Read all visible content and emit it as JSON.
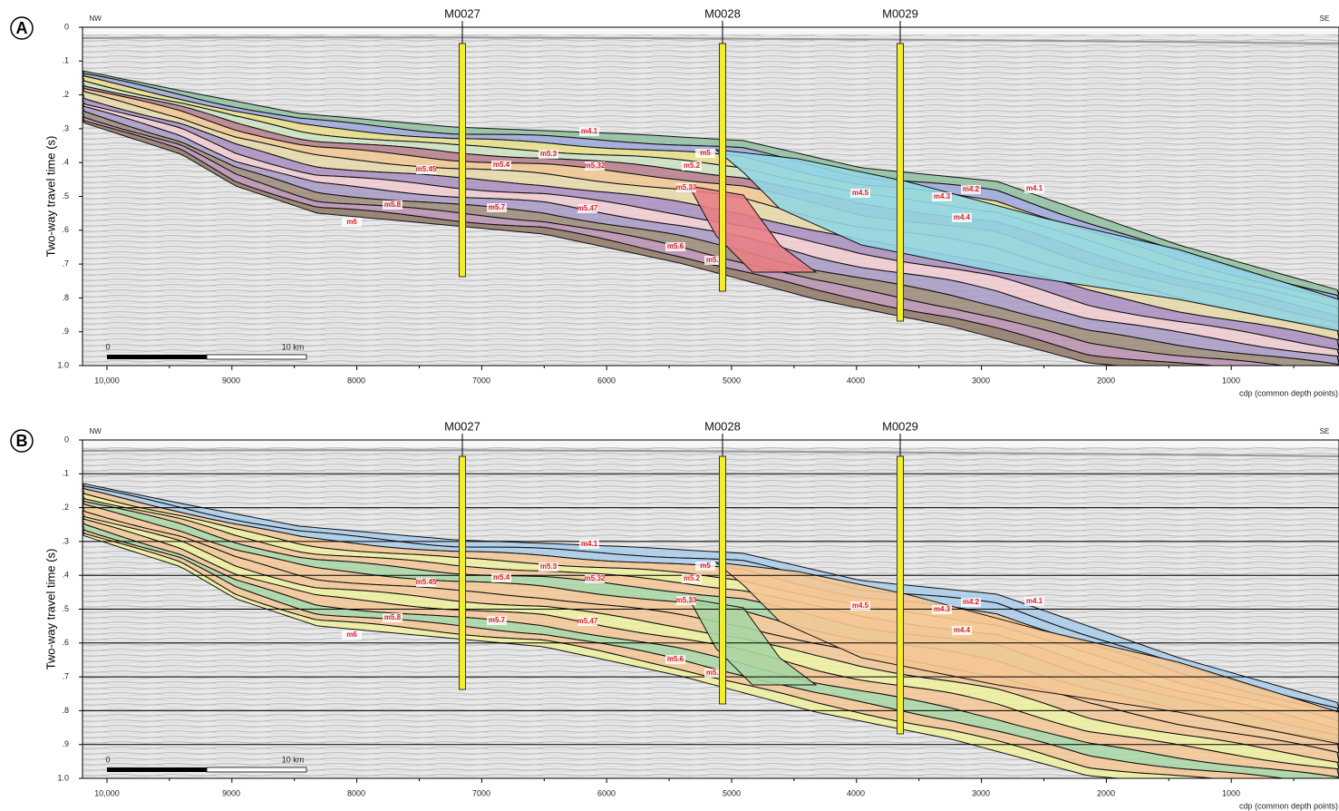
{
  "panels": [
    {
      "label": "A",
      "left_end": "NW",
      "right_end": "SE",
      "wells": [
        "M0027",
        "M0028",
        "M0029"
      ],
      "y_axis_title": "Two-way travel time (s)",
      "y_ticks": [
        "0",
        ".1",
        ".2",
        ".3",
        ".4",
        ".5",
        ".6",
        ".7",
        ".8",
        ".9",
        "1.0"
      ],
      "x_ticks": [
        "10,000",
        "9000",
        "8000",
        "7000",
        "6000",
        "5000",
        "4000",
        "3000",
        "2000",
        "1000"
      ],
      "x_axis_title": "cdp (common depth points)",
      "scale_bar": [
        "0",
        "10 km"
      ],
      "horizons": [
        "m4.1",
        "m5.3",
        "m5",
        "m5.45",
        "m5.4",
        "m5.32",
        "m5.2",
        "m5.33",
        "m4.5",
        "m4.3",
        "m4.2",
        "m4.1",
        "m5.8",
        "m5.7",
        "m5.47",
        "m6",
        "m4.4",
        "m5.6",
        "m5.5"
      ]
    },
    {
      "label": "B",
      "left_end": "NW",
      "right_end": "SE",
      "wells": [
        "M0027",
        "M0028",
        "M0029"
      ],
      "y_axis_title": "Two-way travel time (s)",
      "y_ticks": [
        "0",
        ".1",
        ".2",
        ".3",
        ".4",
        ".5",
        ".6",
        ".7",
        ".8",
        ".9",
        "1.0"
      ],
      "x_ticks": [
        "10,000",
        "9000",
        "8000",
        "7000",
        "6000",
        "5000",
        "4000",
        "3000",
        "2000",
        "1000"
      ],
      "x_axis_title": "cdp (common depth points)",
      "scale_bar": [
        "0",
        "10 km"
      ],
      "horizons": [
        "m4.1",
        "m5.3",
        "m5",
        "m5.45",
        "m5.4",
        "m5.32",
        "m5.2",
        "m5.33",
        "m4.5",
        "m4.3",
        "m4.2",
        "m4.1",
        "m5.8",
        "m5.7",
        "m5.47",
        "m6",
        "m4.4",
        "m5.6",
        "m5.5"
      ]
    }
  ]
}
